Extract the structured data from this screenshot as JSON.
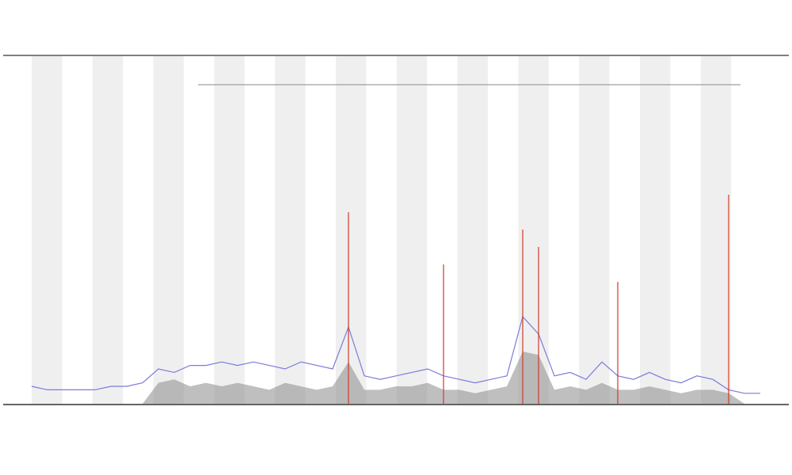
{
  "chart_data": {
    "type": "line",
    "x": [
      0,
      2,
      4,
      6,
      8,
      10,
      12,
      14,
      16,
      18,
      20,
      22,
      24,
      26,
      28,
      30,
      32,
      34,
      36,
      38,
      40,
      42,
      44,
      46,
      48,
      50,
      52,
      54,
      56,
      58,
      60,
      62,
      64,
      66,
      68,
      70,
      72,
      74,
      76,
      78,
      80,
      82,
      84,
      86,
      88,
      90,
      92
    ],
    "xlim": [
      0,
      92
    ],
    "ylim": [
      0,
      100
    ],
    "series": [
      {
        "color": "#8a8a8a",
        "fill": true,
        "values": [
          0,
          0,
          0,
          0,
          0,
          0,
          0,
          0,
          6,
          7,
          5,
          6,
          5,
          6,
          5,
          4,
          6,
          5,
          4,
          5,
          12,
          4,
          4,
          5,
          5,
          6,
          4,
          4,
          3,
          4,
          5,
          15,
          14,
          4,
          5,
          4,
          6,
          4,
          4,
          5,
          4,
          3,
          4,
          4,
          3,
          0,
          0
        ]
      },
      {
        "color": "#7b7bdc",
        "fill": false,
        "values": [
          5,
          4,
          4,
          4,
          4,
          5,
          5,
          6,
          10,
          9,
          11,
          11,
          12,
          11,
          12,
          11,
          10,
          12,
          11,
          10,
          22,
          8,
          7,
          8,
          9,
          10,
          8,
          7,
          6,
          7,
          8,
          25,
          20,
          8,
          9,
          7,
          12,
          8,
          7,
          9,
          7,
          6,
          8,
          7,
          4,
          3,
          3
        ]
      },
      {
        "color": "#d03a2a",
        "spike": true,
        "values": [
          0,
          0,
          0,
          0,
          0,
          0,
          0,
          0,
          0,
          0,
          0,
          0,
          0,
          0,
          0,
          0,
          0,
          0,
          0,
          0,
          55,
          0,
          0,
          0,
          0,
          0,
          40,
          0,
          0,
          0,
          0,
          50,
          45,
          0,
          0,
          0,
          0,
          35,
          0,
          0,
          0,
          0,
          0,
          0,
          60,
          0,
          0
        ]
      }
    ]
  }
}
